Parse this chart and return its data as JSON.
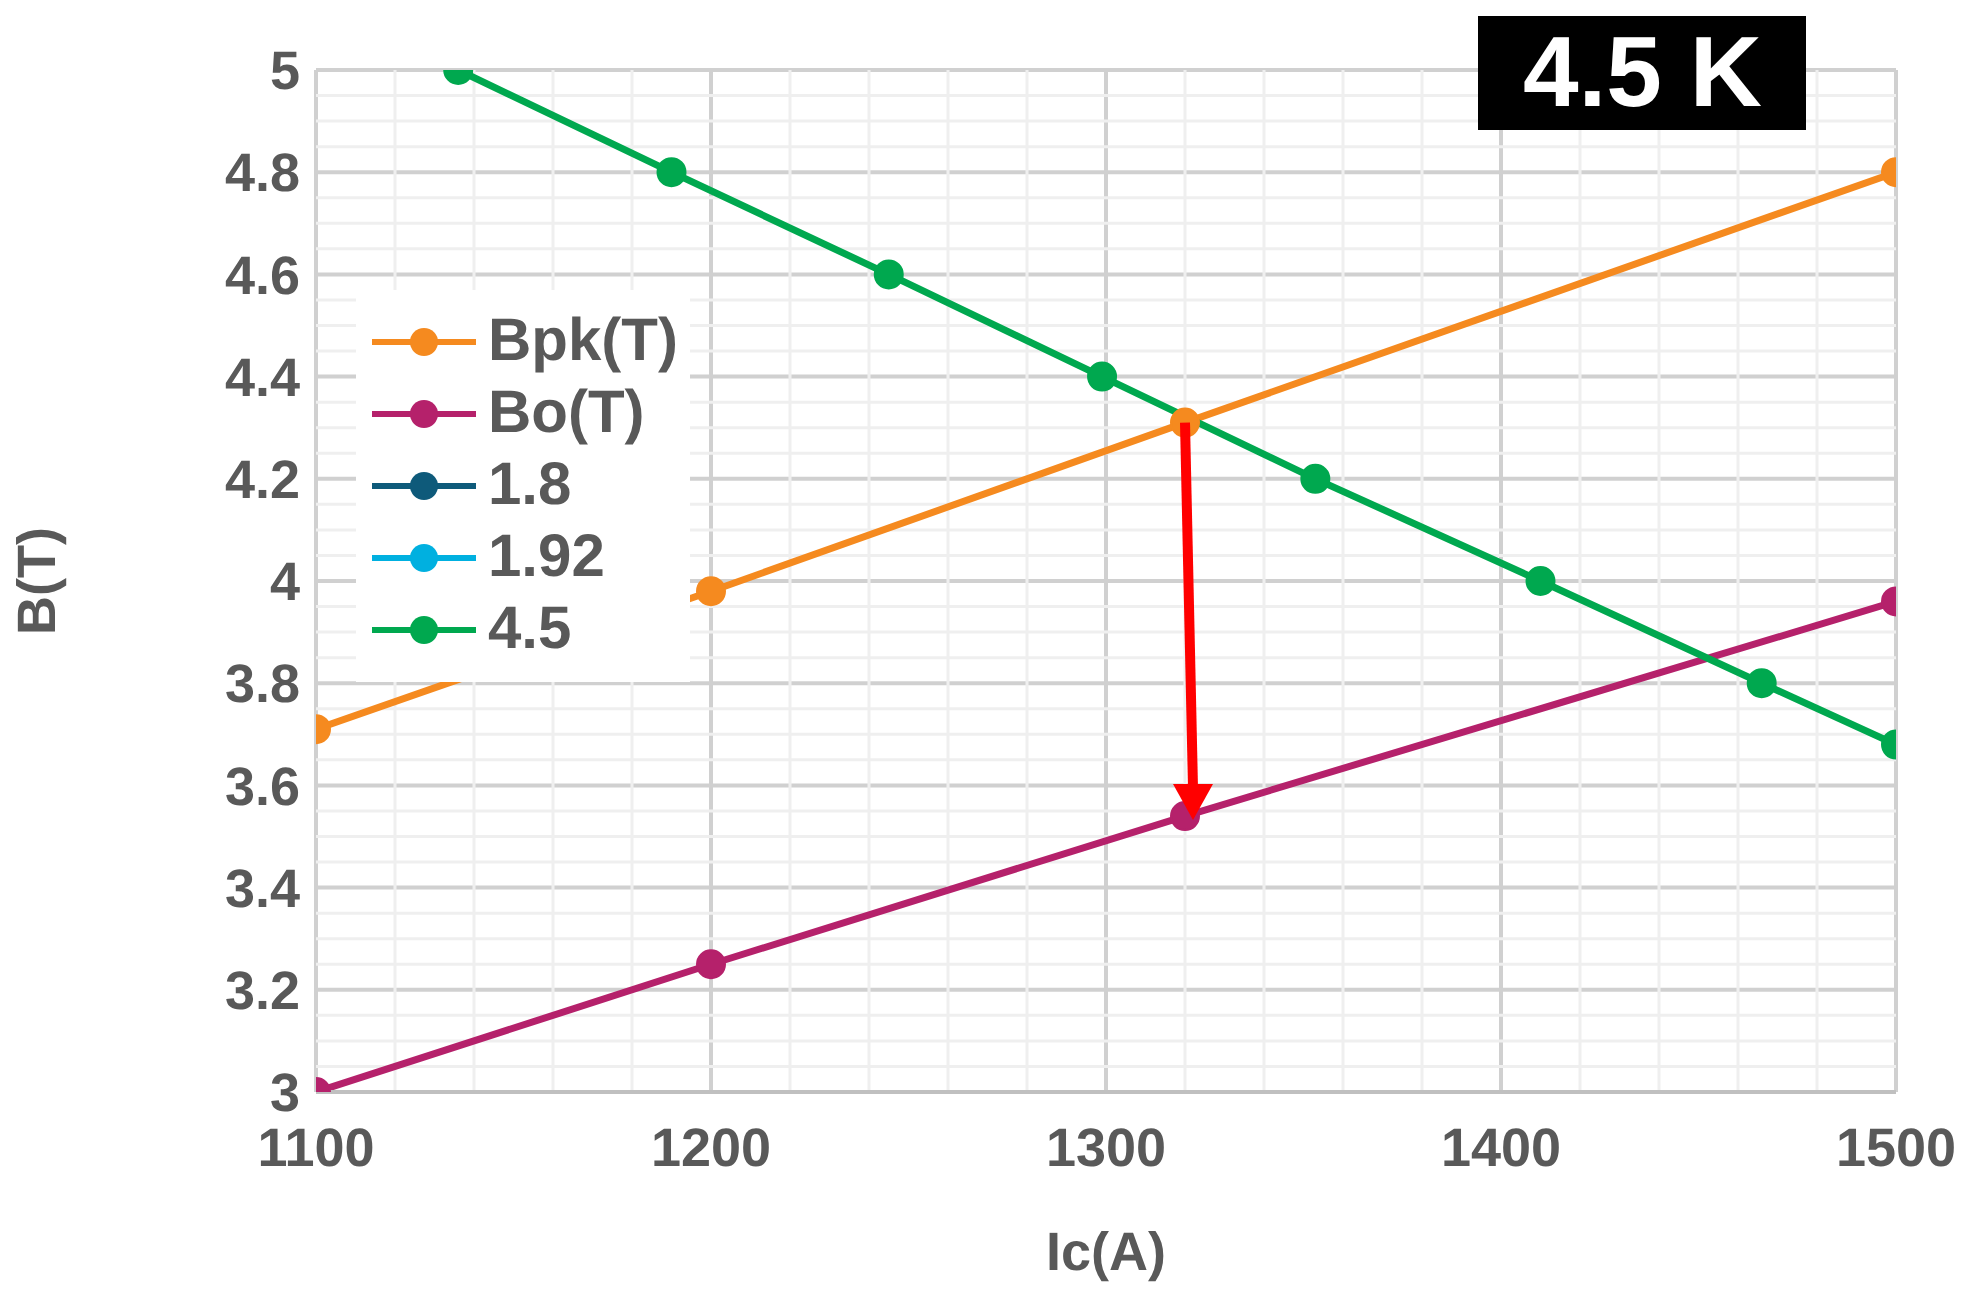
{
  "chart_data": {
    "type": "line",
    "title": "4.5 K",
    "xlabel": "Ic(A)",
    "ylabel": "B(T)",
    "xlim": [
      1100,
      1500
    ],
    "xticks": [
      1100,
      1200,
      1300,
      1400,
      1500
    ],
    "ylim": [
      3,
      5
    ],
    "yticks": [
      3,
      3.2,
      3.4,
      3.6,
      3.8,
      4,
      4.2,
      4.4,
      4.6,
      4.8,
      5
    ],
    "grid": true,
    "legend": "top left",
    "marker": "circle",
    "line_style": "solid",
    "series": [
      {
        "name": "Bpk(T)",
        "color": "#f58a1f",
        "x": [
          1100,
          1200,
          1320,
          1500
        ],
        "values": [
          3.71,
          3.98,
          4.31,
          4.8
        ]
      },
      {
        "name": "Bo(T)",
        "color": "#b5216b",
        "x": [
          1100,
          1200,
          1320,
          1500
        ],
        "values": [
          3.0,
          3.25,
          3.54,
          3.96
        ]
      },
      {
        "name": "1.8",
        "color": "#0e5a7a"
      },
      {
        "name": "1.92",
        "color": "#00b0e0"
      },
      {
        "name": "4.5",
        "color": "#00a84f",
        "x": [
          1136,
          1190,
          1245,
          1299,
          1353,
          1410,
          1466,
          1500
        ],
        "values": [
          5.0,
          4.8,
          4.6,
          4.4,
          4.2,
          4.0,
          3.8,
          3.68
        ]
      }
    ]
  }
}
